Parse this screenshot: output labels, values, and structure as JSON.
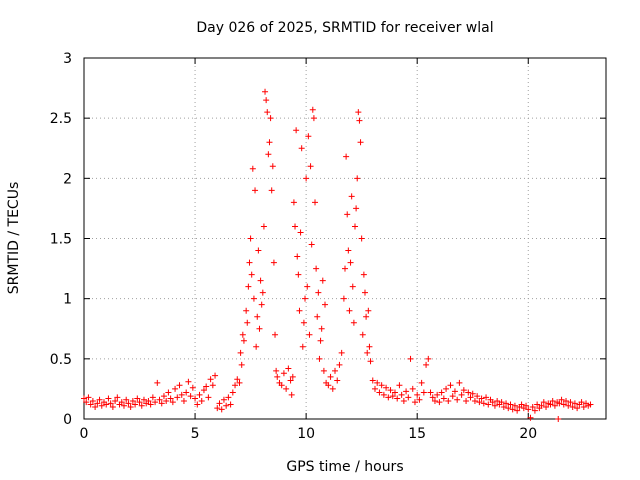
{
  "chart_data": {
    "type": "scatter",
    "title": "Day 026 of 2025, SRMTID for receiver wlal",
    "xlabel": "GPS time / hours",
    "ylabel": "SRMTID / TECUs",
    "xlim": [
      0,
      23.5
    ],
    "ylim": [
      0,
      3
    ],
    "x_ticks": [
      0,
      5,
      10,
      15,
      20
    ],
    "x_tick_labels": [
      "0",
      "5",
      "10",
      "15",
      "20"
    ],
    "y_ticks": [
      0,
      0.5,
      1,
      1.5,
      2,
      2.5,
      3
    ],
    "y_tick_labels": [
      "0",
      "0.5",
      "1",
      "1.5",
      "2",
      "2.5",
      "3"
    ],
    "grid": true,
    "marker": "+",
    "series": [
      {
        "name": "SRMTID",
        "color": "#ff0000",
        "points": [
          [
            0.0,
            0.17
          ],
          [
            0.1,
            0.14
          ],
          [
            0.2,
            0.18
          ],
          [
            0.3,
            0.12
          ],
          [
            0.4,
            0.15
          ],
          [
            0.5,
            0.1
          ],
          [
            0.6,
            0.13
          ],
          [
            0.7,
            0.16
          ],
          [
            0.8,
            0.11
          ],
          [
            0.9,
            0.14
          ],
          [
            1.0,
            0.12
          ],
          [
            1.1,
            0.17
          ],
          [
            1.2,
            0.13
          ],
          [
            1.3,
            0.1
          ],
          [
            1.4,
            0.15
          ],
          [
            1.5,
            0.18
          ],
          [
            1.6,
            0.12
          ],
          [
            1.7,
            0.14
          ],
          [
            1.8,
            0.11
          ],
          [
            1.9,
            0.16
          ],
          [
            2.0,
            0.13
          ],
          [
            2.1,
            0.1
          ],
          [
            2.2,
            0.15
          ],
          [
            2.3,
            0.12
          ],
          [
            2.4,
            0.17
          ],
          [
            2.5,
            0.14
          ],
          [
            2.6,
            0.11
          ],
          [
            2.7,
            0.16
          ],
          [
            2.8,
            0.13
          ],
          [
            2.9,
            0.15
          ],
          [
            3.0,
            0.12
          ],
          [
            3.1,
            0.18
          ],
          [
            3.2,
            0.14
          ],
          [
            3.3,
            0.3
          ],
          [
            3.4,
            0.16
          ],
          [
            3.5,
            0.13
          ],
          [
            3.6,
            0.19
          ],
          [
            3.7,
            0.15
          ],
          [
            3.8,
            0.22
          ],
          [
            3.9,
            0.17
          ],
          [
            4.0,
            0.14
          ],
          [
            4.1,
            0.25
          ],
          [
            4.2,
            0.18
          ],
          [
            4.3,
            0.28
          ],
          [
            4.4,
            0.2
          ],
          [
            4.5,
            0.15
          ],
          [
            4.6,
            0.22
          ],
          [
            4.7,
            0.31
          ],
          [
            4.8,
            0.19
          ],
          [
            4.9,
            0.26
          ],
          [
            5.0,
            0.17
          ],
          [
            5.1,
            0.12
          ],
          [
            5.2,
            0.2
          ],
          [
            5.3,
            0.15
          ],
          [
            5.4,
            0.24
          ],
          [
            5.5,
            0.27
          ],
          [
            5.6,
            0.18
          ],
          [
            5.7,
            0.33
          ],
          [
            5.8,
            0.28
          ],
          [
            5.9,
            0.36
          ],
          [
            6.0,
            0.09
          ],
          [
            6.1,
            0.13
          ],
          [
            6.2,
            0.08
          ],
          [
            6.3,
            0.16
          ],
          [
            6.4,
            0.11
          ],
          [
            6.5,
            0.18
          ],
          [
            6.6,
            0.12
          ],
          [
            6.7,
            0.22
          ],
          [
            6.8,
            0.28
          ],
          [
            6.9,
            0.33
          ],
          [
            7.0,
            0.3
          ],
          [
            7.05,
            0.55
          ],
          [
            7.1,
            0.45
          ],
          [
            7.15,
            0.7
          ],
          [
            7.2,
            0.65
          ],
          [
            7.3,
            0.9
          ],
          [
            7.35,
            0.8
          ],
          [
            7.4,
            1.1
          ],
          [
            7.45,
            1.3
          ],
          [
            7.5,
            1.5
          ],
          [
            7.55,
            1.2
          ],
          [
            7.6,
            2.08
          ],
          [
            7.65,
            1.0
          ],
          [
            7.7,
            1.9
          ],
          [
            7.75,
            0.6
          ],
          [
            7.8,
            0.85
          ],
          [
            7.85,
            1.4
          ],
          [
            7.9,
            0.75
          ],
          [
            7.95,
            1.15
          ],
          [
            8.0,
            0.95
          ],
          [
            8.05,
            1.05
          ],
          [
            8.1,
            1.6
          ],
          [
            8.15,
            2.72
          ],
          [
            8.2,
            2.65
          ],
          [
            8.25,
            2.55
          ],
          [
            8.3,
            2.2
          ],
          [
            8.35,
            2.3
          ],
          [
            8.4,
            2.5
          ],
          [
            8.45,
            1.9
          ],
          [
            8.5,
            2.1
          ],
          [
            8.55,
            1.3
          ],
          [
            8.6,
            0.7
          ],
          [
            8.65,
            0.4
          ],
          [
            8.7,
            0.35
          ],
          [
            8.8,
            0.3
          ],
          [
            8.9,
            0.28
          ],
          [
            9.0,
            0.38
          ],
          [
            9.1,
            0.25
          ],
          [
            9.2,
            0.42
          ],
          [
            9.3,
            0.32
          ],
          [
            9.35,
            0.2
          ],
          [
            9.4,
            0.35
          ],
          [
            9.45,
            1.8
          ],
          [
            9.5,
            1.6
          ],
          [
            9.55,
            2.4
          ],
          [
            9.6,
            1.35
          ],
          [
            9.65,
            1.2
          ],
          [
            9.7,
            0.9
          ],
          [
            9.75,
            1.55
          ],
          [
            9.8,
            2.25
          ],
          [
            9.85,
            0.6
          ],
          [
            9.9,
            0.8
          ],
          [
            9.95,
            1.0
          ],
          [
            10.0,
            2.0
          ],
          [
            10.05,
            1.1
          ],
          [
            10.1,
            2.35
          ],
          [
            10.15,
            0.7
          ],
          [
            10.2,
            2.1
          ],
          [
            10.25,
            1.45
          ],
          [
            10.3,
            2.57
          ],
          [
            10.35,
            2.5
          ],
          [
            10.4,
            1.8
          ],
          [
            10.45,
            1.25
          ],
          [
            10.5,
            0.85
          ],
          [
            10.55,
            1.05
          ],
          [
            10.6,
            0.5
          ],
          [
            10.65,
            0.65
          ],
          [
            10.7,
            0.75
          ],
          [
            10.75,
            1.15
          ],
          [
            10.8,
            0.4
          ],
          [
            10.85,
            0.95
          ],
          [
            10.9,
            0.3
          ],
          [
            11.0,
            0.28
          ],
          [
            11.1,
            0.35
          ],
          [
            11.2,
            0.25
          ],
          [
            11.3,
            0.4
          ],
          [
            11.4,
            0.32
          ],
          [
            11.5,
            0.45
          ],
          [
            11.6,
            0.55
          ],
          [
            11.7,
            1.0
          ],
          [
            11.75,
            1.25
          ],
          [
            11.8,
            2.18
          ],
          [
            11.85,
            1.7
          ],
          [
            11.9,
            1.4
          ],
          [
            11.95,
            0.9
          ],
          [
            12.0,
            1.3
          ],
          [
            12.05,
            1.85
          ],
          [
            12.1,
            1.1
          ],
          [
            12.15,
            0.8
          ],
          [
            12.2,
            1.6
          ],
          [
            12.25,
            1.75
          ],
          [
            12.3,
            2.0
          ],
          [
            12.35,
            2.55
          ],
          [
            12.4,
            2.48
          ],
          [
            12.45,
            2.3
          ],
          [
            12.5,
            1.5
          ],
          [
            12.55,
            0.7
          ],
          [
            12.6,
            1.2
          ],
          [
            12.65,
            1.05
          ],
          [
            12.7,
            0.85
          ],
          [
            12.75,
            0.55
          ],
          [
            12.8,
            0.9
          ],
          [
            12.85,
            0.6
          ],
          [
            12.9,
            0.48
          ],
          [
            13.0,
            0.32
          ],
          [
            13.1,
            0.25
          ],
          [
            13.2,
            0.3
          ],
          [
            13.3,
            0.22
          ],
          [
            13.4,
            0.28
          ],
          [
            13.5,
            0.2
          ],
          [
            13.6,
            0.26
          ],
          [
            13.7,
            0.18
          ],
          [
            13.8,
            0.24
          ],
          [
            13.9,
            0.19
          ],
          [
            14.0,
            0.22
          ],
          [
            14.1,
            0.17
          ],
          [
            14.2,
            0.28
          ],
          [
            14.3,
            0.2
          ],
          [
            14.4,
            0.15
          ],
          [
            14.5,
            0.23
          ],
          [
            14.6,
            0.18
          ],
          [
            14.7,
            0.5
          ],
          [
            14.8,
            0.25
          ],
          [
            14.9,
            0.14
          ],
          [
            15.0,
            0.2
          ],
          [
            15.1,
            0.16
          ],
          [
            15.2,
            0.3
          ],
          [
            15.3,
            0.22
          ],
          [
            15.4,
            0.45
          ],
          [
            15.5,
            0.5
          ],
          [
            15.6,
            0.22
          ],
          [
            15.7,
            0.18
          ],
          [
            15.8,
            0.15
          ],
          [
            15.9,
            0.2
          ],
          [
            16.0,
            0.14
          ],
          [
            16.1,
            0.22
          ],
          [
            16.2,
            0.17
          ],
          [
            16.3,
            0.25
          ],
          [
            16.4,
            0.15
          ],
          [
            16.5,
            0.28
          ],
          [
            16.6,
            0.19
          ],
          [
            16.7,
            0.23
          ],
          [
            16.8,
            0.16
          ],
          [
            16.9,
            0.3
          ],
          [
            17.0,
            0.2
          ],
          [
            17.1,
            0.24
          ],
          [
            17.2,
            0.15
          ],
          [
            17.3,
            0.22
          ],
          [
            17.4,
            0.18
          ],
          [
            17.5,
            0.21
          ],
          [
            17.6,
            0.15
          ],
          [
            17.7,
            0.19
          ],
          [
            17.8,
            0.14
          ],
          [
            17.9,
            0.17
          ],
          [
            18.0,
            0.13
          ],
          [
            18.1,
            0.18
          ],
          [
            18.2,
            0.12
          ],
          [
            18.3,
            0.16
          ],
          [
            18.4,
            0.14
          ],
          [
            18.5,
            0.11
          ],
          [
            18.6,
            0.15
          ],
          [
            18.7,
            0.12
          ],
          [
            18.8,
            0.14
          ],
          [
            18.9,
            0.1
          ],
          [
            19.0,
            0.13
          ],
          [
            19.1,
            0.09
          ],
          [
            19.2,
            0.12
          ],
          [
            19.3,
            0.08
          ],
          [
            19.4,
            0.11
          ],
          [
            19.5,
            0.07
          ],
          [
            19.6,
            0.1
          ],
          [
            19.7,
            0.12
          ],
          [
            19.8,
            0.09
          ],
          [
            19.9,
            0.11
          ],
          [
            20.0,
            0.08
          ],
          [
            20.1,
            0.01
          ],
          [
            20.2,
            0.1
          ],
          [
            20.3,
            0.07
          ],
          [
            20.4,
            0.12
          ],
          [
            20.5,
            0.09
          ],
          [
            20.6,
            0.11
          ],
          [
            20.7,
            0.14
          ],
          [
            20.8,
            0.1
          ],
          [
            20.9,
            0.13
          ],
          [
            21.0,
            0.12
          ],
          [
            21.1,
            0.15
          ],
          [
            21.2,
            0.11
          ],
          [
            21.3,
            0.14
          ],
          [
            21.35,
            0.0
          ],
          [
            21.4,
            0.13
          ],
          [
            21.5,
            0.16
          ],
          [
            21.6,
            0.12
          ],
          [
            21.7,
            0.15
          ],
          [
            21.8,
            0.11
          ],
          [
            21.9,
            0.14
          ],
          [
            22.0,
            0.1
          ],
          [
            22.1,
            0.13
          ],
          [
            22.2,
            0.09
          ],
          [
            22.3,
            0.12
          ],
          [
            22.4,
            0.14
          ],
          [
            22.5,
            0.1
          ],
          [
            22.6,
            0.13
          ],
          [
            22.7,
            0.11
          ],
          [
            22.8,
            0.12
          ]
        ]
      }
    ]
  }
}
